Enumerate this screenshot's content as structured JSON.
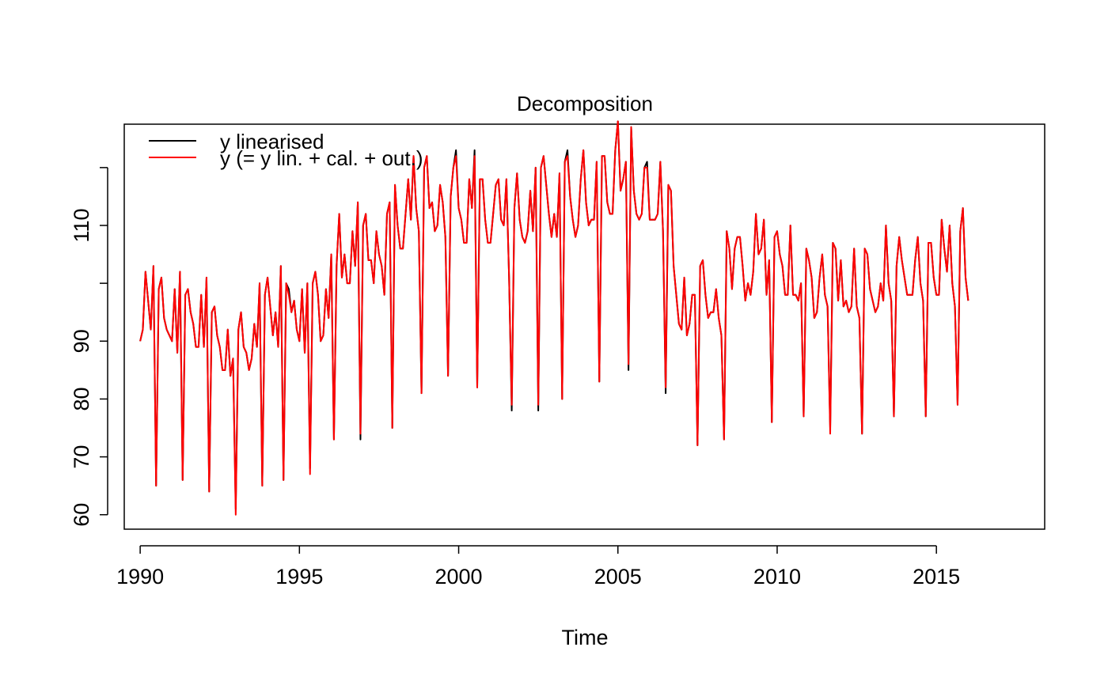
{
  "chart_data": {
    "type": "line",
    "title": "Decomposition",
    "xlabel": "Time",
    "ylabel": "",
    "xlim": [
      1989.5,
      2018.4
    ],
    "ylim": [
      57.5,
      127.5
    ],
    "x_ticks": [
      1990,
      1995,
      2000,
      2005,
      2010,
      2015
    ],
    "x_tick_labels": [
      "1990",
      "1995",
      "2000",
      "2005",
      "2010",
      "2015"
    ],
    "y_ticks": [
      60,
      70,
      80,
      90,
      100,
      110,
      120
    ],
    "y_tick_labels": [
      "60",
      "70",
      "80",
      "90",
      "",
      "110",
      ""
    ],
    "grid": false,
    "legend_position": "top-left",
    "x_start": 1990.0,
    "x_step": 0.08333,
    "series": [
      {
        "name": "y linearised",
        "color": "#000000",
        "values": [
          90,
          92,
          102,
          97,
          92,
          103,
          65,
          99,
          101,
          94,
          92,
          91,
          90,
          99,
          88,
          102,
          66,
          98,
          99,
          95,
          93,
          89,
          89,
          98,
          89,
          101,
          64,
          95,
          96,
          91,
          89,
          85,
          85,
          92,
          84,
          87,
          61,
          92,
          95,
          89,
          88,
          85,
          87,
          93,
          89,
          100,
          65,
          98,
          101,
          96,
          91,
          95,
          89,
          103,
          66,
          100,
          99,
          95,
          97,
          92,
          90,
          99,
          88,
          100,
          68,
          100,
          102,
          98,
          90,
          91,
          99,
          94,
          105,
          73,
          103,
          112,
          101,
          105,
          100,
          100,
          109,
          103,
          114,
          73,
          110,
          112,
          104,
          104,
          100,
          109,
          105,
          103,
          98,
          112,
          114,
          75,
          117,
          110,
          106,
          106,
          112,
          118,
          111,
          122,
          113,
          109,
          81,
          120,
          122,
          113,
          114,
          109,
          110,
          117,
          114,
          108,
          84,
          115,
          120,
          123,
          113,
          111,
          107,
          107,
          118,
          113,
          123,
          82,
          118,
          118,
          111,
          107,
          107,
          112,
          117,
          118,
          111,
          110,
          118,
          101,
          78,
          113,
          119,
          111,
          108,
          107,
          109,
          116,
          109,
          120,
          78,
          120,
          122,
          117,
          112,
          108,
          112,
          108,
          119,
          80,
          121,
          123,
          115,
          111,
          108,
          110,
          118,
          123,
          114,
          110,
          111,
          111,
          121,
          83,
          122,
          122,
          114,
          112,
          112,
          123,
          128,
          116,
          118,
          121,
          85,
          127,
          116,
          112,
          111,
          112,
          120,
          121,
          111,
          111,
          111,
          112,
          121,
          109,
          81,
          117,
          116,
          103,
          98,
          93,
          92,
          101,
          91,
          93,
          98,
          98,
          72,
          103,
          104,
          98,
          94,
          95,
          95,
          99,
          94,
          91,
          73,
          109,
          106,
          99,
          106,
          108,
          108,
          103,
          97,
          100,
          98,
          102,
          112,
          105,
          106,
          111,
          98,
          104,
          76,
          108,
          109,
          105,
          103,
          98,
          98,
          110,
          98,
          98,
          97,
          100,
          77,
          106,
          104,
          101,
          94,
          95,
          101,
          105,
          98,
          96,
          75,
          107,
          106,
          97,
          104,
          96,
          97,
          95,
          96,
          106,
          96,
          94,
          74,
          106,
          105,
          99,
          97,
          95,
          96,
          100,
          97,
          110,
          100,
          97,
          77,
          103,
          108,
          104,
          101,
          98,
          98,
          98,
          104,
          108,
          100,
          97,
          77,
          107,
          107,
          101,
          98,
          98,
          111,
          106,
          102,
          110,
          100,
          96,
          79,
          109,
          113,
          101,
          97
        ]
      },
      {
        "name": "y (= y lin. + cal. + out.)",
        "color": "#ff0000",
        "values": [
          90,
          92,
          102,
          97,
          92,
          103,
          65,
          99,
          101,
          94,
          92,
          91,
          90,
          99,
          88,
          102,
          66,
          98,
          99,
          95,
          93,
          89,
          89,
          98,
          89,
          101,
          64,
          95,
          96,
          91,
          89,
          85,
          85,
          92,
          84,
          87,
          60,
          92,
          95,
          89,
          88,
          85,
          87,
          93,
          89,
          100,
          65,
          98,
          101,
          96,
          91,
          95,
          89,
          103,
          66,
          100,
          98,
          95,
          97,
          92,
          90,
          99,
          88,
          100,
          67,
          100,
          102,
          98,
          90,
          91,
          99,
          94,
          105,
          73,
          103,
          112,
          101,
          105,
          100,
          100,
          109,
          103,
          114,
          74,
          110,
          112,
          104,
          104,
          100,
          109,
          105,
          103,
          98,
          112,
          114,
          75,
          117,
          110,
          106,
          106,
          112,
          118,
          111,
          122,
          113,
          109,
          81,
          120,
          122,
          113,
          114,
          109,
          110,
          117,
          114,
          108,
          84,
          115,
          120,
          122,
          113,
          111,
          107,
          107,
          118,
          113,
          122,
          82,
          118,
          118,
          111,
          107,
          107,
          112,
          117,
          118,
          111,
          110,
          118,
          101,
          79,
          113,
          119,
          111,
          108,
          107,
          109,
          116,
          109,
          120,
          79,
          120,
          122,
          117,
          112,
          108,
          112,
          108,
          119,
          80,
          121,
          122,
          115,
          111,
          108,
          110,
          118,
          123,
          114,
          110,
          111,
          111,
          121,
          83,
          122,
          122,
          114,
          112,
          112,
          123,
          128,
          116,
          118,
          121,
          86,
          127,
          116,
          112,
          111,
          112,
          120,
          120,
          111,
          111,
          111,
          112,
          121,
          109,
          82,
          117,
          116,
          103,
          98,
          93,
          92,
          101,
          91,
          93,
          98,
          98,
          72,
          103,
          104,
          98,
          94,
          95,
          95,
          99,
          94,
          91,
          73,
          109,
          106,
          99,
          106,
          108,
          108,
          103,
          97,
          100,
          98,
          102,
          112,
          105,
          106,
          111,
          98,
          104,
          76,
          108,
          109,
          105,
          103,
          98,
          98,
          110,
          98,
          98,
          97,
          100,
          77,
          106,
          104,
          101,
          94,
          95,
          101,
          105,
          98,
          96,
          74,
          107,
          106,
          97,
          104,
          96,
          97,
          95,
          96,
          106,
          96,
          94,
          74,
          106,
          105,
          99,
          97,
          95,
          96,
          100,
          97,
          110,
          100,
          97,
          77,
          103,
          108,
          104,
          101,
          98,
          98,
          98,
          104,
          108,
          100,
          97,
          77,
          107,
          107,
          101,
          98,
          98,
          111,
          106,
          102,
          110,
          100,
          96,
          79,
          109,
          113,
          101,
          97
        ]
      }
    ]
  }
}
